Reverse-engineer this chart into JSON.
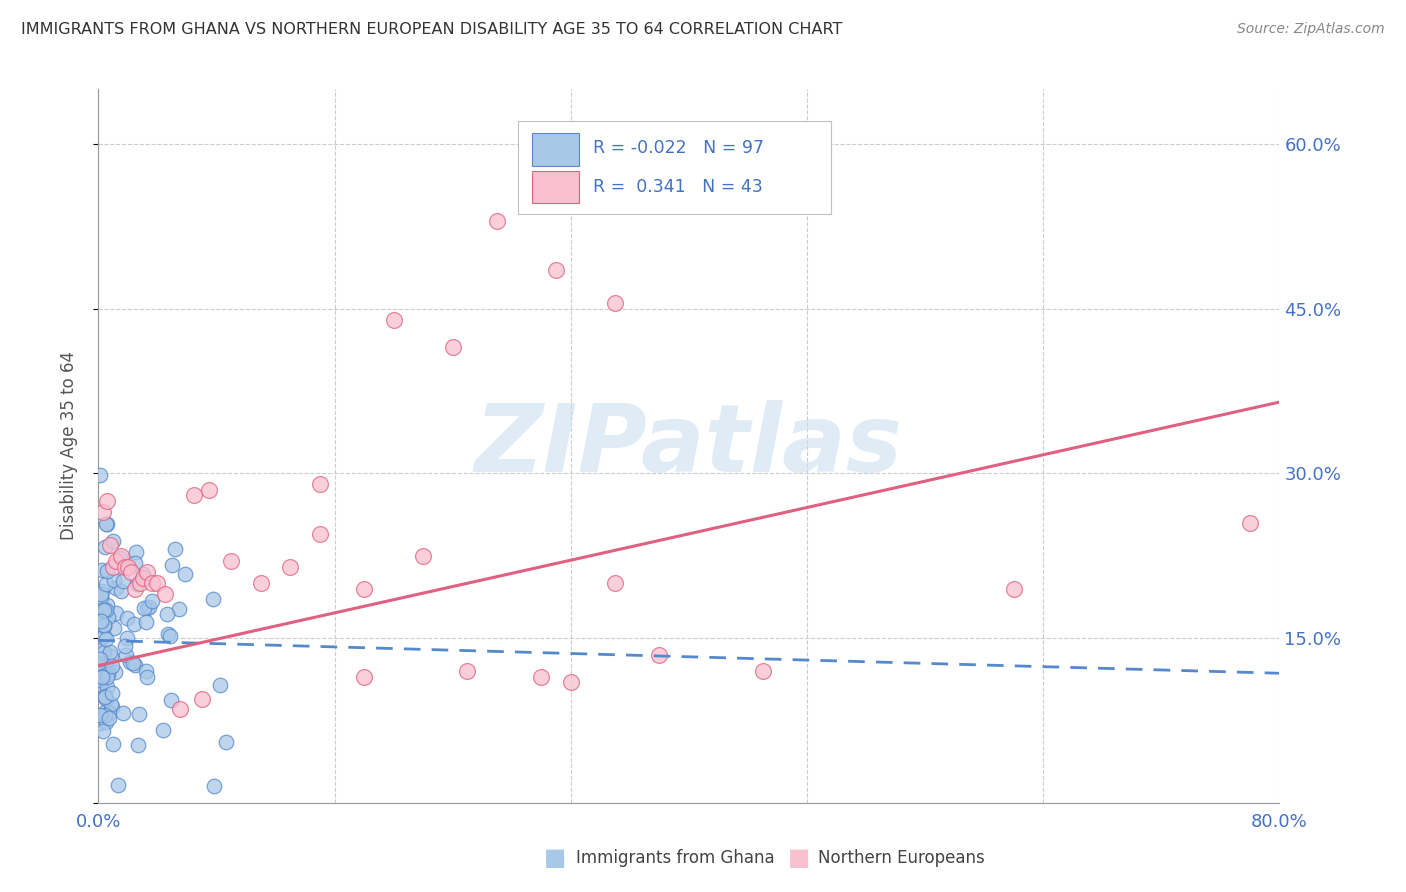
{
  "title": "IMMIGRANTS FROM GHANA VS NORTHERN EUROPEAN DISABILITY AGE 35 TO 64 CORRELATION CHART",
  "source": "Source: ZipAtlas.com",
  "ylabel": "Disability Age 35 to 64",
  "xlim": [
    0.0,
    0.8
  ],
  "ylim": [
    0.0,
    0.65
  ],
  "ghana_color": "#a8c8e8",
  "ghana_edge_color": "#5588cc",
  "northern_color": "#f8c0d0",
  "northern_edge_color": "#e06080",
  "ghana_R": -0.022,
  "ghana_N": 97,
  "northern_R": 0.341,
  "northern_N": 43,
  "legend_label_ghana": "Immigrants from Ghana",
  "legend_label_northern": "Northern Europeans",
  "watermark": "ZIPatlas",
  "axis_color": "#4472c4",
  "legend_r_color": "#4472c4",
  "ghana_line_y_start": 0.148,
  "ghana_line_y_end": 0.118,
  "northern_line_y_start": 0.125,
  "northern_line_y_end": 0.365
}
